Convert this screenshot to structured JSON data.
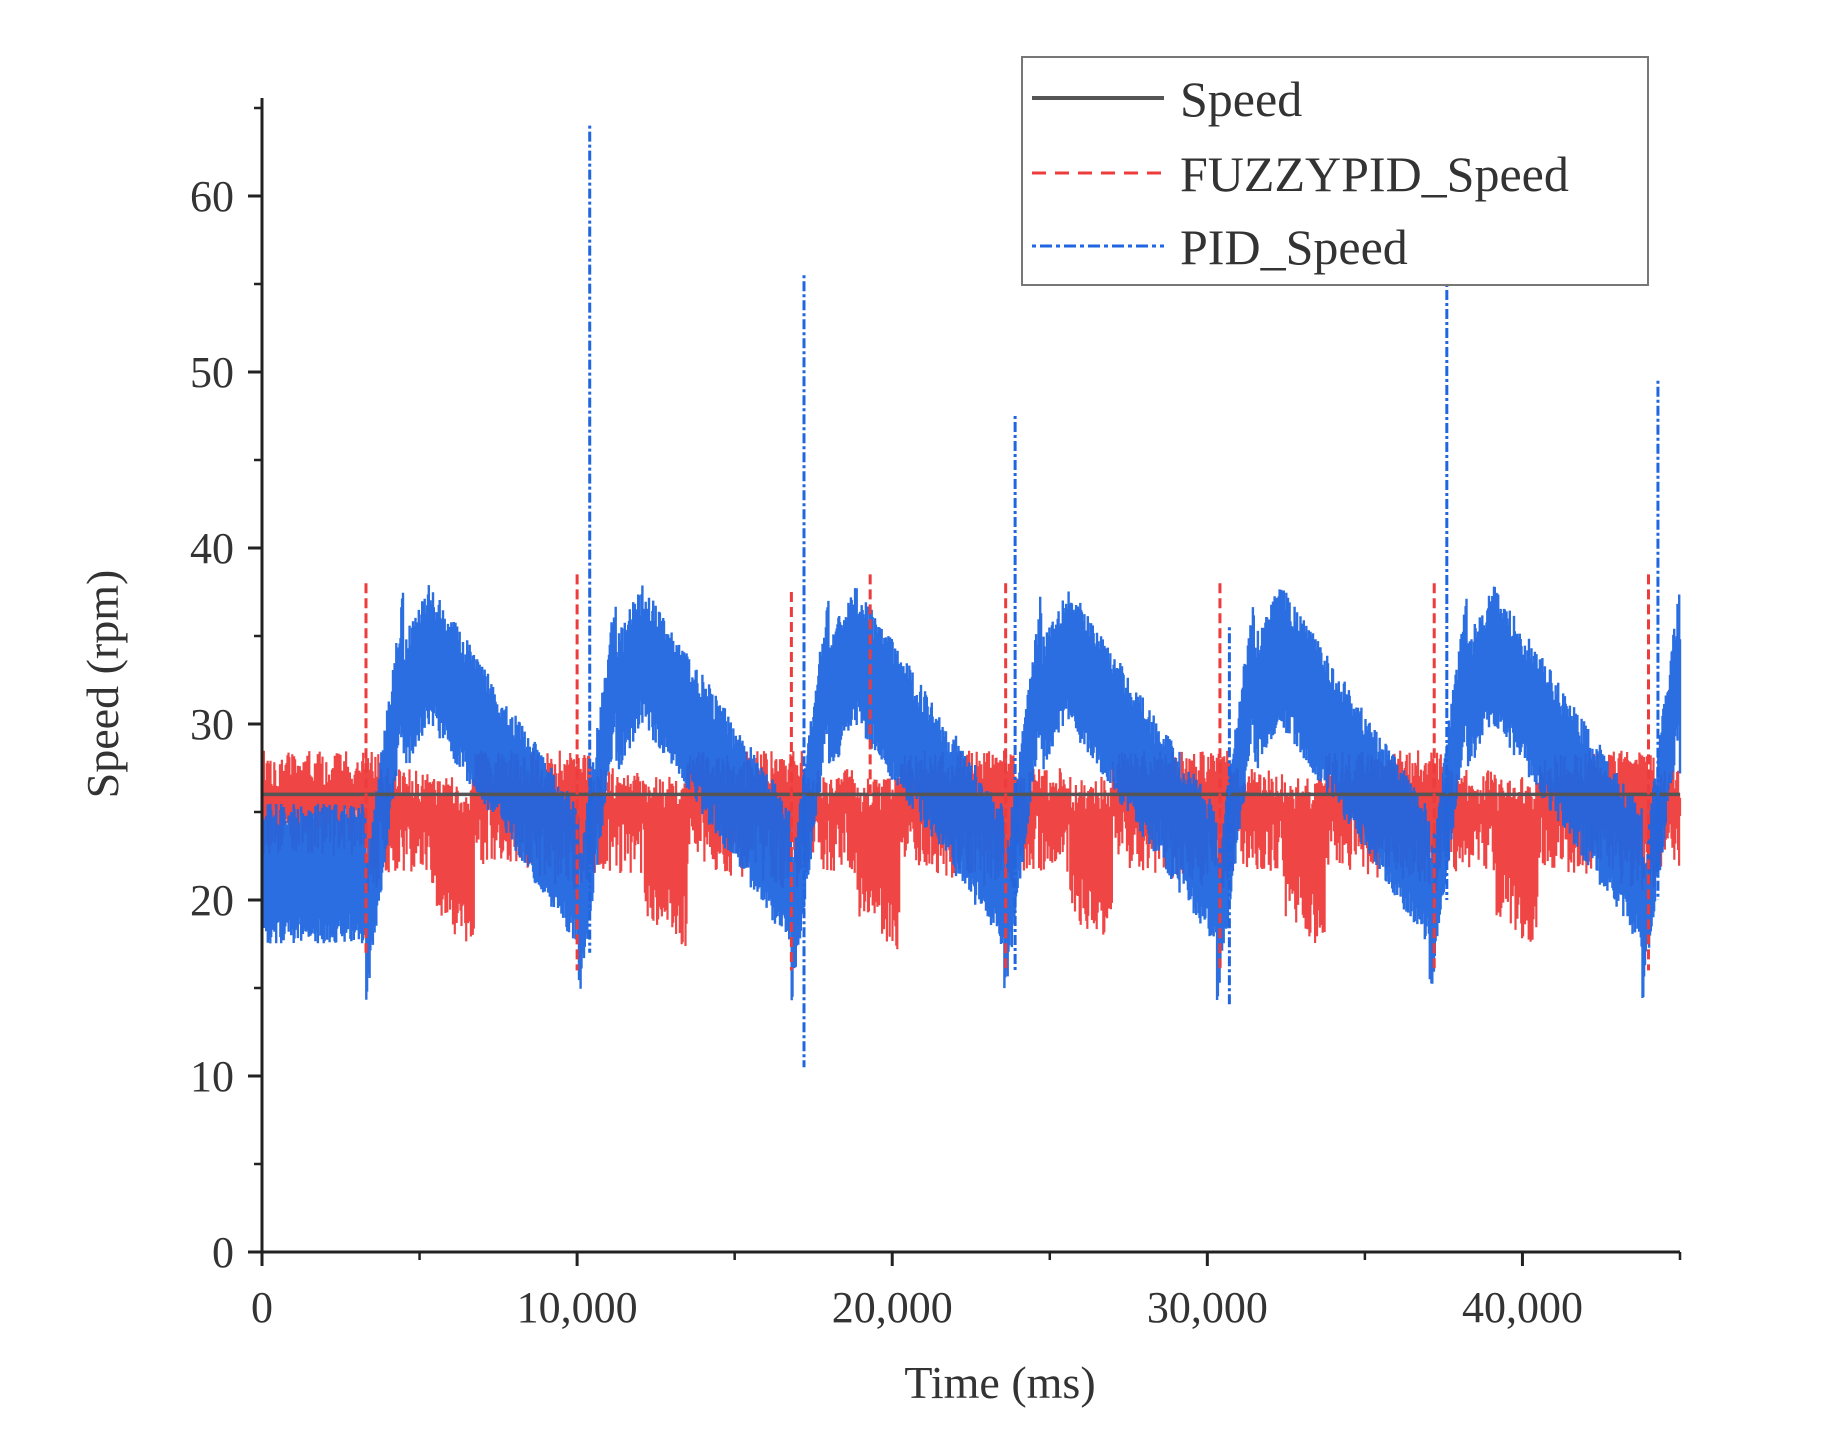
{
  "chart_data": {
    "type": "line",
    "title": "",
    "xlabel": "Time (ms)",
    "ylabel": "Speed (rpm)",
    "xlim": [
      0,
      45000
    ],
    "ylim": [
      0,
      65
    ],
    "x_ticks": [
      0,
      10000,
      20000,
      30000,
      40000
    ],
    "x_tick_labels": [
      "0",
      "10,000",
      "20,000",
      "30,000",
      "40,000"
    ],
    "y_ticks": [
      0,
      10,
      20,
      30,
      40,
      50,
      60
    ],
    "y_tick_labels": [
      "0",
      "10",
      "20",
      "30",
      "40",
      "50",
      "60"
    ],
    "grid": false,
    "legend_position": "top-right",
    "series": [
      {
        "name": "Speed",
        "color": "#555555",
        "style": "solid",
        "x": [
          0,
          45000
        ],
        "values": [
          26,
          26
        ]
      },
      {
        "name": "FUZZYPID_Speed",
        "color": "#ee3b3b",
        "style": "dashed",
        "period_ms": 6750,
        "band_high": [
          28,
          28,
          28,
          27,
          26
        ],
        "band_low": [
          23,
          22,
          22,
          21,
          16
        ],
        "spikes": [
          {
            "x": 3300,
            "values": [
              38,
              17
            ]
          },
          {
            "x": 10000,
            "values": [
              38.5,
              16
            ]
          },
          {
            "x": 16800,
            "values": [
              37.5,
              16
            ]
          },
          {
            "x": 19300,
            "values": [
              38.5,
              26
            ]
          },
          {
            "x": 23600,
            "values": [
              38,
              16
            ]
          },
          {
            "x": 30400,
            "values": [
              38,
              16
            ]
          },
          {
            "x": 37200,
            "values": [
              38,
              16
            ]
          },
          {
            "x": 44000,
            "values": [
              38.5,
              16
            ]
          }
        ]
      },
      {
        "name": "PID_Speed",
        "color": "#1f66e0",
        "style": "dotted",
        "period_ms": 6750,
        "ramp_peak": 34,
        "ramp_trough": 18,
        "spikes": [
          {
            "x": 10400,
            "values": [
              64,
              17
            ]
          },
          {
            "x": 17200,
            "values": [
              55.5,
              10.5
            ]
          },
          {
            "x": 23900,
            "values": [
              47.5,
              16
            ]
          },
          {
            "x": 30700,
            "values": [
              35.5,
              14
            ]
          },
          {
            "x": 37600,
            "values": [
              55,
              20
            ]
          },
          {
            "x": 44300,
            "values": [
              49.5,
              20
            ]
          }
        ]
      }
    ]
  }
}
